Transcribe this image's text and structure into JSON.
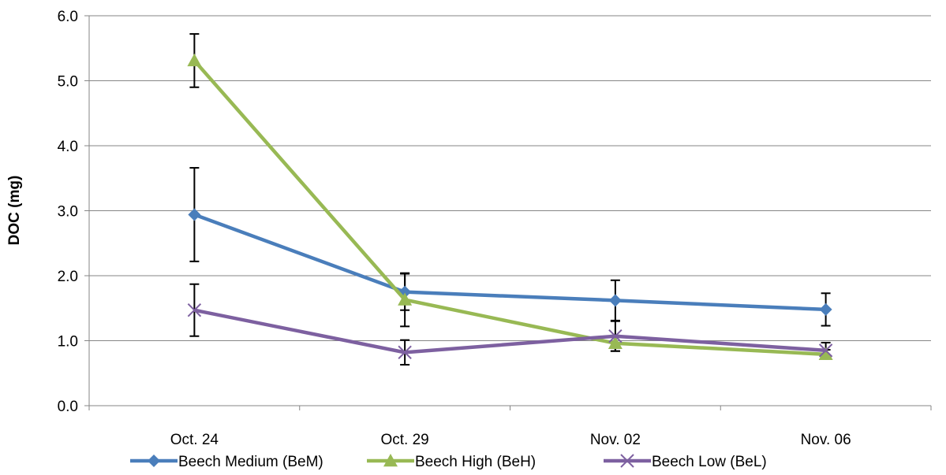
{
  "chart_data": {
    "type": "line",
    "title": "",
    "xlabel": "",
    "ylabel": "DOC (mg)",
    "ylim": [
      0,
      6
    ],
    "yticks": [
      "0.0",
      "1.0",
      "2.0",
      "3.0",
      "4.0",
      "5.0",
      "6.0"
    ],
    "categories": [
      "Oct. 24",
      "Oct. 29",
      "Nov. 02",
      "Nov. 06"
    ],
    "grid": "horizontal",
    "legend_position": "bottom",
    "series": [
      {
        "name": "Beech Medium (BeM)",
        "color": "#4a7ebb",
        "marker": "diamond",
        "values": [
          2.94,
          1.75,
          1.62,
          1.48
        ],
        "err": [
          0.72,
          0.28,
          0.31,
          0.25
        ]
      },
      {
        "name": "Beech High (BeH)",
        "color": "#98b954",
        "marker": "triangle",
        "values": [
          5.31,
          1.63,
          0.96,
          0.79
        ],
        "err": [
          0.41,
          0.41,
          0.12,
          0.07
        ]
      },
      {
        "name": "Beech Low (BeL)",
        "color": "#7d60a0",
        "marker": "x",
        "values": [
          1.47,
          0.82,
          1.07,
          0.85
        ],
        "err": [
          0.4,
          0.19,
          0.23,
          0.12
        ]
      }
    ]
  }
}
